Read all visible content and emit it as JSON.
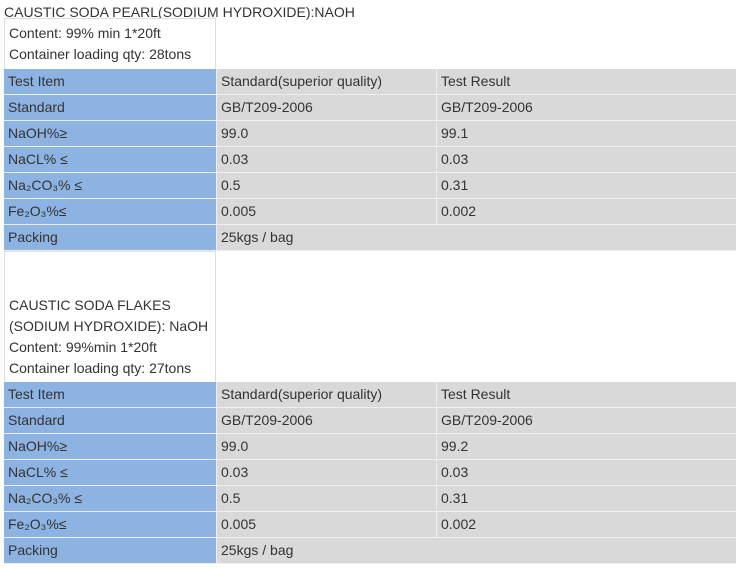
{
  "sections": [
    {
      "title": "CAUSTIC SODA PEARL(SODIUM HYDROXIDE):NAOH",
      "info": [
        "Content: 99% min 1*20ft",
        "Container loading qty: 28tons"
      ],
      "header": [
        "Test Item",
        "Standard(superior quality)",
        "Test Result"
      ],
      "rows": [
        [
          "Standard",
          "GB/T209-2006",
          "GB/T209-2006"
        ],
        [
          "NaOH%≥",
          "99.0",
          "99.1"
        ],
        [
          "NaCL% ≤",
          "0.03",
          "0.03"
        ],
        [
          "Na₂CO₃% ≤",
          "0.5",
          "0.31"
        ],
        [
          "Fe₂O₃%≤",
          "0.005",
          "0.002"
        ]
      ],
      "packing": [
        "Packing",
        "25kgs / bag"
      ]
    },
    {
      "title_lines": [
        "CAUSTIC SODA  FLAKES",
        "(SODIUM HYDROXIDE):  NaOH"
      ],
      "info": [
        "Content: 99%min 1*20ft",
        "Container loading qty: 27tons"
      ],
      "header": [
        "Test Item",
        "Standard(superior quality)",
        "Test Result"
      ],
      "rows": [
        [
          "Standard",
          "GB/T209-2006",
          "GB/T209-2006"
        ],
        [
          "NaOH%≥",
          "99.0",
          "99.2"
        ],
        [
          "NaCL% ≤",
          "0.03",
          "0.03"
        ],
        [
          "Na₂CO₃% ≤",
          "0.5",
          "0.31"
        ],
        [
          "Fe₂O₃%≤",
          "0.005",
          "0.002"
        ]
      ],
      "packing": [
        "Packing",
        "25kgs / bag"
      ]
    }
  ],
  "colors": {
    "label_bg": "#8db3e2",
    "value_bg": "#d9d9d9"
  }
}
